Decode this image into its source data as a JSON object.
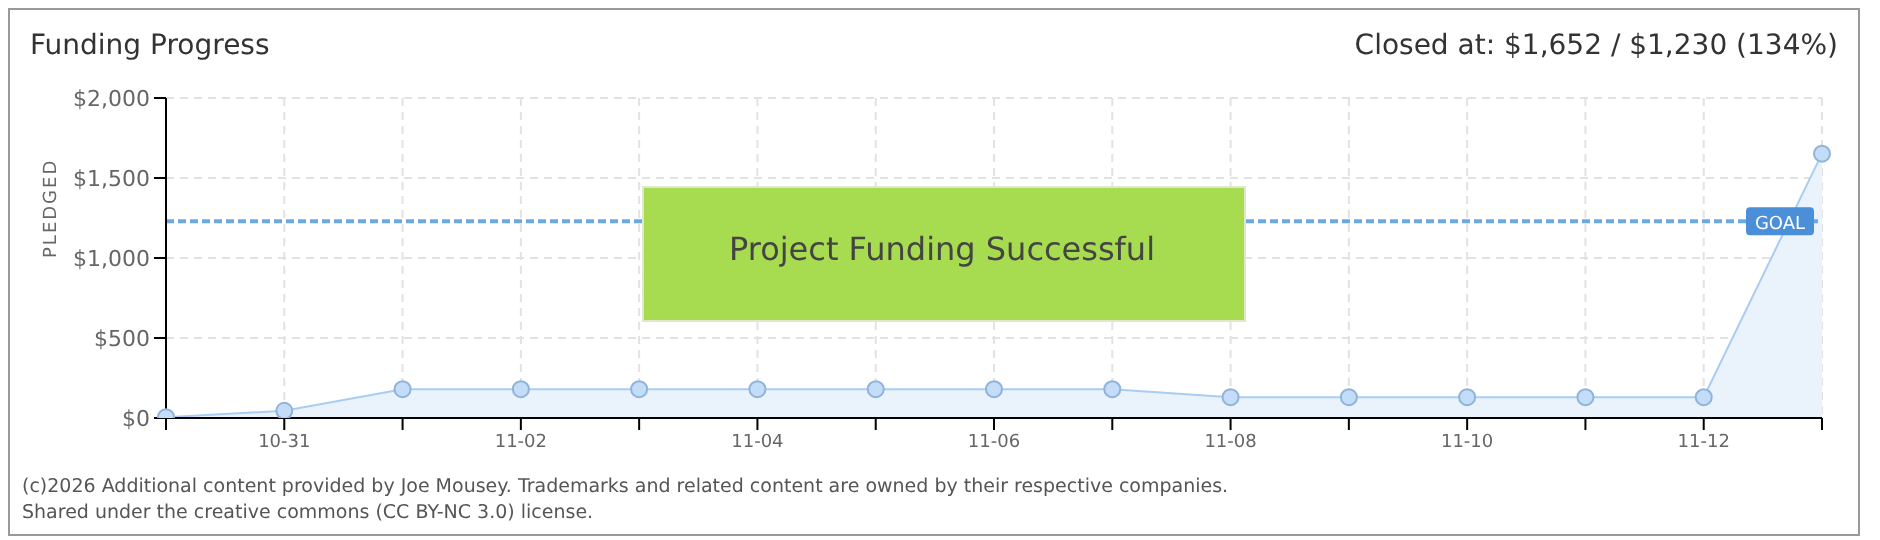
{
  "chart_data": {
    "type": "area",
    "title": "Funding Progress",
    "subtitle": "Closed at: $1,652 / $1,230 (134%)",
    "ylabel": "PLEDGED",
    "categories": [
      null,
      "10-31",
      null,
      "11-02",
      null,
      "11-04",
      null,
      "11-06",
      null,
      "11-08",
      null,
      "11-10",
      null,
      "11-12",
      null
    ],
    "series": [
      {
        "color": "#a9cdf2",
        "values": [
          5,
          45,
          180,
          180,
          180,
          180,
          180,
          180,
          180,
          130,
          130,
          130,
          130,
          130,
          1652
        ]
      }
    ],
    "ylim": [
      0,
      2000
    ],
    "yticks": [
      {
        "value": 0,
        "label": "$0"
      },
      {
        "value": 500,
        "label": "$500"
      },
      {
        "value": 1000,
        "label": "$1,000"
      },
      {
        "value": 1500,
        "label": "$1,500"
      },
      {
        "value": 2000,
        "label": "$2,000"
      }
    ],
    "grid": true,
    "marker": "circle",
    "legend": false,
    "ref_lines": [
      {
        "axis": "y",
        "value": 1230,
        "label": "GOAL",
        "color": "#6aa9e6",
        "line_style": "dashed"
      }
    ],
    "annotations": [
      "Project Funding Successful",
      "(c)2026 Additional content provided by Joe Mousey. Trademarks and related content are owned by their respective companies.",
      "Shared under the creative commons (CC BY-NC 3.0) license."
    ]
  }
}
